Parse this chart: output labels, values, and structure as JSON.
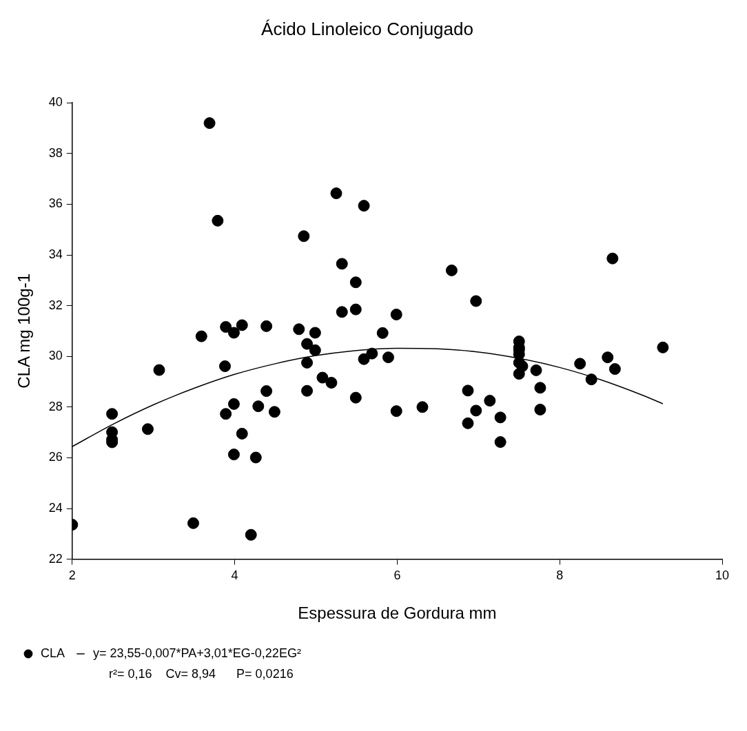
{
  "chart_data": {
    "type": "scatter",
    "title": "Ácido Linoleico Conjugado",
    "xlabel": "Espessura de Gordura mm",
    "ylabel": "CLA mg 100g-1",
    "xlim": [
      2,
      10
    ],
    "xticks": [
      2,
      4,
      6,
      8,
      10
    ],
    "ylim": [
      22,
      40
    ],
    "yticks": [
      22,
      24,
      26,
      28,
      30,
      32,
      34,
      36,
      38,
      40
    ],
    "grid": false,
    "legend": "bottom left",
    "marker": "circle",
    "series": [
      {
        "name": "CLA",
        "type": "scatter",
        "color": "#000000",
        "x": [
          3.69,
          5.25,
          5.59,
          3.79,
          4.85,
          5.32,
          5.49,
          5.32,
          5.49,
          5.99,
          3.59,
          3.89,
          3.99,
          4.09,
          4.39,
          4.79,
          4.99,
          5.82,
          4.89,
          4.99,
          5.69,
          5.59,
          5.89,
          3.07,
          3.88,
          4.89,
          5.08,
          5.19,
          4.39,
          4.89,
          5.49,
          2.49,
          3.99,
          3.89,
          4.29,
          4.49,
          5.99,
          2.49,
          2.49,
          2.49,
          2.93,
          4.09,
          3.99,
          4.26,
          2.0,
          3.49,
          4.2,
          6.67,
          6.97,
          8.65,
          7.5,
          7.5,
          7.5,
          7.5,
          7.5,
          7.5,
          7.54,
          7.71,
          8.25,
          8.59,
          8.68,
          8.39,
          9.27,
          7.76,
          7.76,
          6.31,
          6.87,
          7.14,
          6.97,
          6.87,
          7.27,
          7.27
        ],
        "values": [
          39.2,
          36.43,
          35.94,
          35.35,
          34.74,
          33.65,
          32.92,
          31.75,
          31.85,
          31.65,
          30.79,
          31.16,
          30.93,
          31.23,
          31.19,
          31.07,
          30.93,
          30.92,
          30.49,
          30.24,
          30.11,
          29.89,
          29.96,
          29.46,
          29.61,
          29.75,
          29.16,
          28.96,
          28.63,
          28.64,
          28.37,
          27.73,
          28.12,
          27.73,
          28.03,
          27.81,
          27.84,
          27.01,
          26.72,
          26.61,
          27.13,
          26.95,
          26.13,
          26.01,
          23.36,
          23.42,
          22.96,
          33.39,
          32.18,
          33.86,
          30.59,
          30.35,
          30.26,
          30.08,
          29.75,
          29.31,
          29.61,
          29.45,
          29.71,
          29.96,
          29.5,
          29.09,
          30.35,
          28.76,
          27.9,
          28.0,
          28.65,
          28.25,
          27.86,
          27.36,
          27.59,
          26.62
        ]
      },
      {
        "name": "y= 23,55-0,007*PA+3,01*EG-0,22EG²",
        "type": "line",
        "color": "#000000",
        "marker": "none",
        "line_style": "solid",
        "x": [
          2,
          2.5,
          3,
          3.5,
          4,
          4.5,
          5,
          5.5,
          6,
          6.5,
          7,
          7.5,
          8,
          8.5,
          9,
          9.27
        ],
        "values": [
          26.44,
          27.32,
          28.09,
          28.74,
          29.29,
          29.71,
          30.03,
          30.23,
          30.32,
          30.3,
          30.17,
          29.92,
          29.56,
          29.08,
          28.49,
          28.13
        ]
      }
    ],
    "annotations": [
      "r²= 0,16    Cv= 8,94      P= 0,0216"
    ]
  }
}
